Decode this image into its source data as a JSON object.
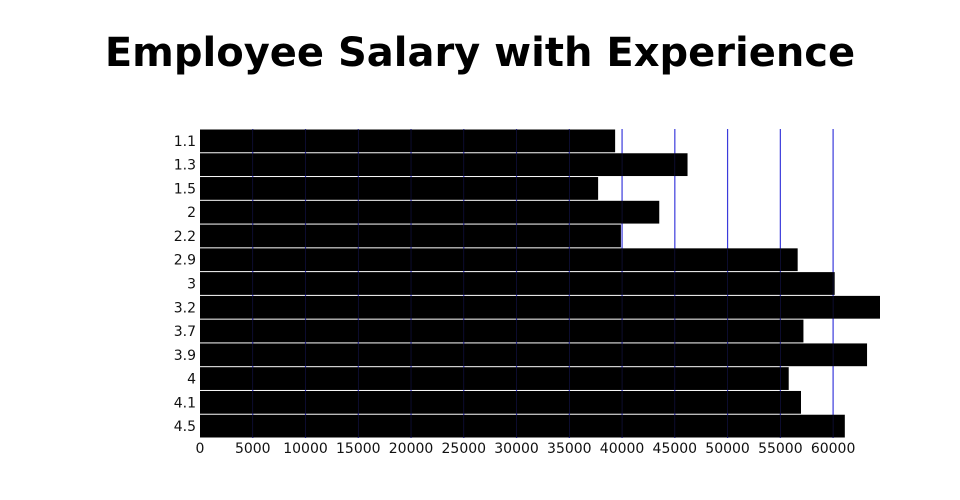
{
  "chart_data": {
    "type": "bar",
    "orientation": "horizontal",
    "title": "Employee Salary with Experience",
    "xlabel": "",
    "ylabel": "",
    "categories": [
      "1.1",
      "1.3",
      "1.5",
      "2",
      "2.2",
      "2.9",
      "3",
      "3.2",
      "3.7",
      "3.9",
      "4",
      "4.1",
      "4.5"
    ],
    "values": [
      39343,
      46205,
      37731,
      43525,
      39891,
      56642,
      60150,
      64445,
      57189,
      63218,
      55794,
      56957,
      61111
    ],
    "xlim": [
      0,
      64445
    ],
    "xticks": [
      0,
      5000,
      10000,
      15000,
      20000,
      25000,
      30000,
      35000,
      40000,
      45000,
      50000,
      55000,
      60000
    ],
    "grid": "vertical",
    "legend": "none",
    "colors": {
      "bar": "#000000",
      "grid": "#3c3cdc",
      "background": "#ffffff"
    }
  }
}
